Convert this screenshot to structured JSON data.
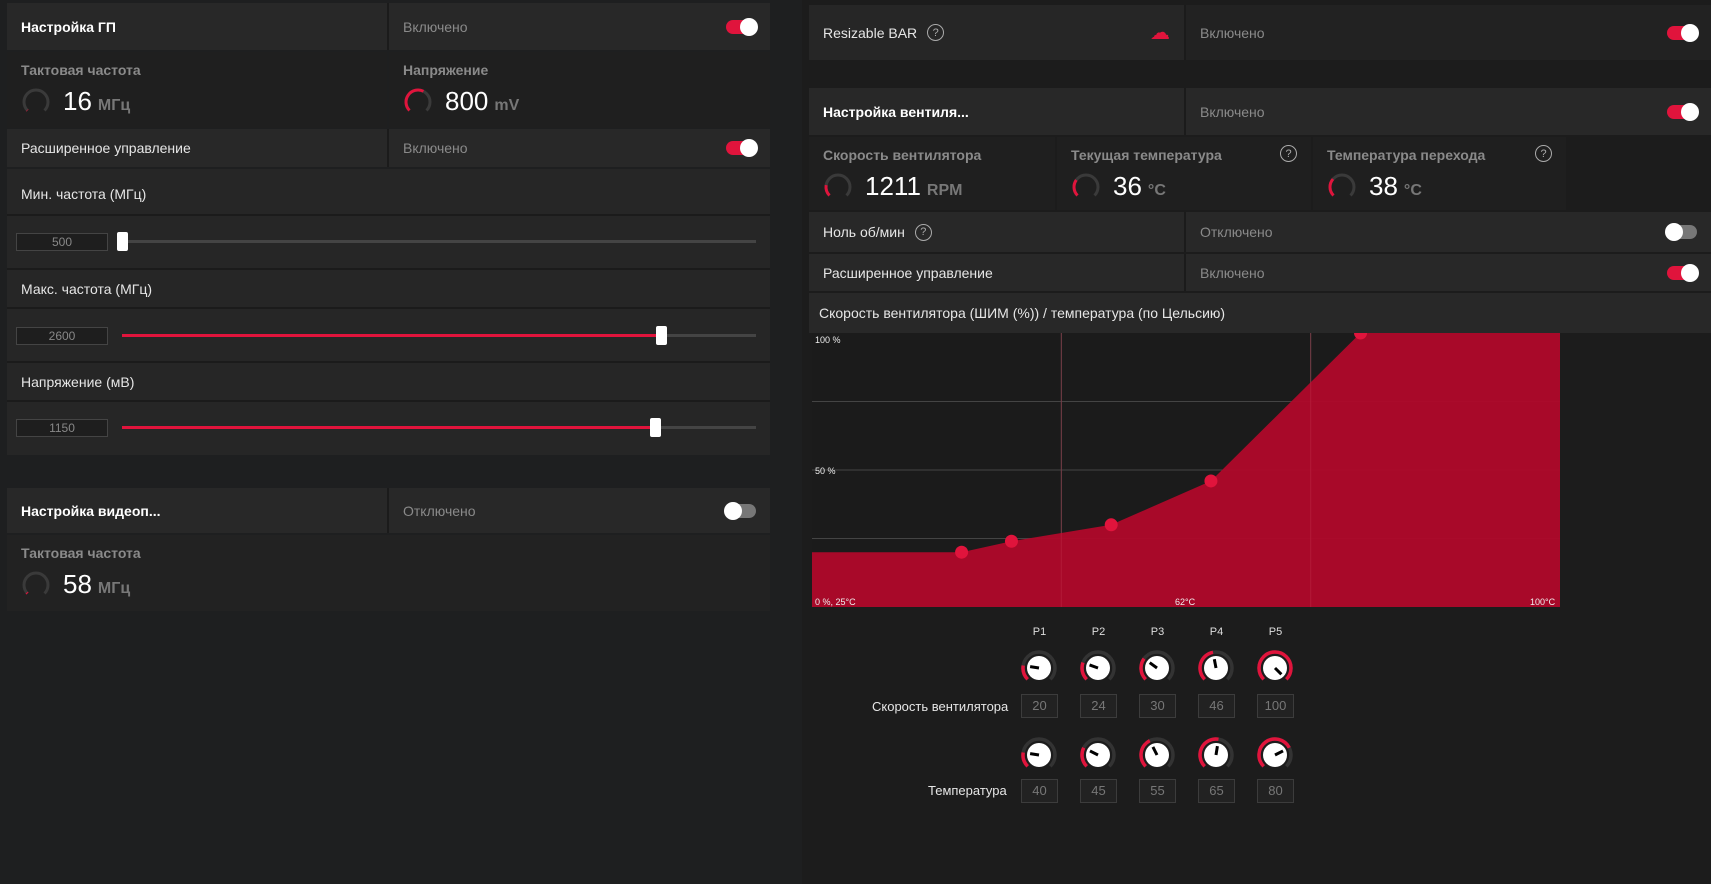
{
  "gpu": {
    "title": "Настройка ГП",
    "state": "Включено",
    "clock_label": "Тактовая частота",
    "clock_value": "16",
    "clock_unit": "МГц",
    "clock_fraction": 0.01,
    "volt_label": "Напряжение",
    "volt_value": "800",
    "volt_unit": "mV",
    "volt_fraction": 0.6,
    "adv_label": "Расширенное управление",
    "adv_state": "Включено",
    "min_label": "Мин. частота (МГц)",
    "min_value": "500",
    "min_fraction": 0.0,
    "max_label": "Макс. частота (МГц)",
    "max_value": "2600",
    "max_fraction": 0.85,
    "vlt_label": "Напряжение (мВ)",
    "vlt_value": "1150",
    "vlt_fraction": 0.84
  },
  "vram": {
    "title": "Настройка видеоп...",
    "state": "Отключено",
    "clock_label": "Тактовая частота",
    "clock_value": "58",
    "clock_unit": "МГц",
    "clock_fraction": 0.02
  },
  "rebar": {
    "label": "Resizable BAR",
    "state": "Включено",
    "icon": "brain-icon"
  },
  "fan": {
    "title": "Настройка вентиля...",
    "state": "Включено",
    "speed_label": "Скорость вентилятора",
    "speed_value": "1211",
    "speed_unit": "RPM",
    "speed_fraction": 0.2,
    "temp_label": "Текущая температура",
    "temp_value": "36",
    "temp_unit": "°C",
    "temp_fraction": 0.3,
    "junc_label": "Температура перехода",
    "junc_value": "38",
    "junc_unit": "°C",
    "junc_fraction": 0.32,
    "zero_label": "Ноль об/мин",
    "zero_state": "Отключено",
    "adv_label": "Расширенное управление",
    "adv_state": "Включено",
    "curve_title": "Скорость вентилятора (ШИМ (%)) / температура (по Цельсию)",
    "speed_row_label": "Скорость вентилятора",
    "temp_row_label": "Температура"
  },
  "chart_data": {
    "type": "area",
    "x_label_min": "0 %, 25°C",
    "x_label_mid": "62°C",
    "x_label_max": "100°C",
    "y_label_max": "100 %",
    "y_label_mid": "50 %",
    "xlim": [
      25,
      100
    ],
    "ylim": [
      0,
      100
    ],
    "points": [
      {
        "name": "P1",
        "temp": 40,
        "speed": 20
      },
      {
        "name": "P2",
        "temp": 45,
        "speed": 24
      },
      {
        "name": "P3",
        "temp": 55,
        "speed": 30
      },
      {
        "name": "P4",
        "temp": 65,
        "speed": 46
      },
      {
        "name": "P5",
        "temp": 80,
        "speed": 100
      }
    ],
    "accent": "#b0082a"
  }
}
